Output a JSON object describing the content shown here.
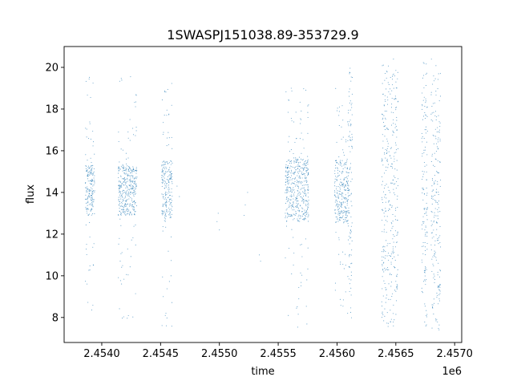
{
  "chart_data": {
    "type": "scatter",
    "title": "1SWASPJ151038.89-353729.9",
    "xlabel": "time",
    "ylabel": "flux",
    "x_offset_label": "1e6",
    "xlim": [
      2453680,
      2457060
    ],
    "ylim": [
      6.8,
      21.0
    ],
    "x_ticks": [
      2454000,
      2454500,
      2455000,
      2455500,
      2456000,
      2456500,
      2457000
    ],
    "x_tick_labels": [
      "2.4540",
      "2.4545",
      "2.4550",
      "2.4555",
      "2.4560",
      "2.4565",
      "2.4570"
    ],
    "y_ticks": [
      8,
      10,
      12,
      14,
      16,
      18,
      20
    ],
    "y_tick_labels": [
      "8",
      "10",
      "12",
      "14",
      "16",
      "18",
      "20"
    ],
    "grid": false,
    "legend": "none",
    "marker_color": "#1f77b4",
    "series": [
      {
        "clusters": [
          {
            "x_start": 2453860,
            "x_end": 2453940,
            "core_low": 12.9,
            "core_high": 15.3,
            "min": 8.3,
            "max": 19.6
          },
          {
            "x_start": 2454140,
            "x_end": 2454300,
            "core_low": 12.9,
            "core_high": 15.3,
            "min": 7.8,
            "max": 19.8
          },
          {
            "x_start": 2454510,
            "x_end": 2454600,
            "core_low": 12.6,
            "core_high": 15.5,
            "min": 7.4,
            "max": 19.5
          },
          {
            "x_start": 2455560,
            "x_end": 2455760,
            "core_low": 12.6,
            "core_high": 15.6,
            "min": 7.5,
            "max": 19.0
          },
          {
            "x_start": 2455980,
            "x_end": 2456100,
            "core_low": 12.5,
            "core_high": 15.6,
            "min": 8.0,
            "max": 19.0
          },
          {
            "x_start": 2456100,
            "x_end": 2456130,
            "core_low": 10.0,
            "core_high": 17.5,
            "min": 7.8,
            "max": 20.3
          },
          {
            "x_start": 2456380,
            "x_end": 2456520,
            "core_low": 9.0,
            "core_high": 19.0,
            "min": 7.5,
            "max": 20.4
          },
          {
            "x_start": 2456720,
            "x_end": 2456770,
            "core_low": 9.5,
            "core_high": 18.0,
            "min": 7.5,
            "max": 20.4
          },
          {
            "x_start": 2456800,
            "x_end": 2456880,
            "core_low": 9.0,
            "core_high": 18.0,
            "min": 7.4,
            "max": 20.4
          }
        ],
        "sparse_points": [
          [
            2454640,
            14.3
          ],
          [
            2454660,
            13.8
          ],
          [
            2454980,
            12.6
          ],
          [
            2454990,
            13.0
          ],
          [
            2455000,
            12.2
          ],
          [
            2455210,
            12.9
          ],
          [
            2455220,
            13.4
          ],
          [
            2455240,
            14.0
          ],
          [
            2455340,
            11.0
          ],
          [
            2455350,
            10.7
          ]
        ]
      }
    ]
  }
}
